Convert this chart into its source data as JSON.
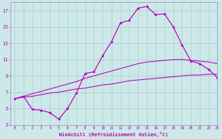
{
  "xlabel": "Windchill (Refroidissement éolien,°C)",
  "bg_color": "#cce8e8",
  "grid_color": "#aacccc",
  "line_color": "#bb00bb",
  "spine_color": "#9999bb",
  "xlim": [
    -0.5,
    23
  ],
  "ylim": [
    3,
    18
  ],
  "xticks": [
    0,
    1,
    2,
    3,
    4,
    5,
    6,
    7,
    8,
    9,
    10,
    11,
    12,
    13,
    14,
    15,
    16,
    17,
    18,
    19,
    20,
    21,
    22,
    23
  ],
  "yticks": [
    3,
    5,
    7,
    9,
    11,
    13,
    15,
    17
  ],
  "series": [
    {
      "x": [
        0,
        1,
        2,
        3,
        4,
        5,
        6,
        7,
        8,
        9,
        10,
        11,
        12,
        13,
        14,
        15,
        16,
        17,
        18,
        19,
        20,
        21,
        22,
        23
      ],
      "y": [
        6.2,
        6.4,
        6.5,
        6.7,
        6.9,
        7.0,
        7.2,
        7.4,
        7.5,
        7.7,
        7.9,
        8.0,
        8.2,
        8.4,
        8.5,
        8.6,
        8.7,
        8.8,
        8.9,
        9.0,
        9.1,
        9.1,
        9.2,
        9.2
      ],
      "marker": false,
      "linewidth": 0.8
    },
    {
      "x": [
        0,
        1,
        2,
        3,
        4,
        5,
        6,
        7,
        8,
        9,
        10,
        11,
        12,
        13,
        14,
        15,
        16,
        17,
        18,
        19,
        20,
        21,
        22,
        23
      ],
      "y": [
        6.2,
        6.5,
        6.8,
        7.1,
        7.4,
        7.7,
        8.0,
        8.3,
        8.7,
        9.0,
        9.3,
        9.6,
        9.9,
        10.2,
        10.5,
        10.7,
        10.8,
        10.9,
        11.0,
        11.0,
        10.9,
        10.8,
        10.7,
        10.5
      ],
      "marker": false,
      "linewidth": 0.8
    },
    {
      "x": [
        0,
        1,
        2,
        3,
        4,
        5,
        6,
        7,
        8,
        9,
        10,
        11,
        12,
        13,
        14,
        15,
        16,
        17,
        18,
        19,
        20,
        21,
        22,
        23
      ],
      "y": [
        6.2,
        6.5,
        4.9,
        4.8,
        4.5,
        3.7,
        5.0,
        6.9,
        9.3,
        9.5,
        11.5,
        13.2,
        15.5,
        15.8,
        17.3,
        17.5,
        16.5,
        16.6,
        15.0,
        12.8,
        10.8,
        10.5,
        9.8,
        8.8
      ],
      "marker": true,
      "linewidth": 0.9
    }
  ]
}
